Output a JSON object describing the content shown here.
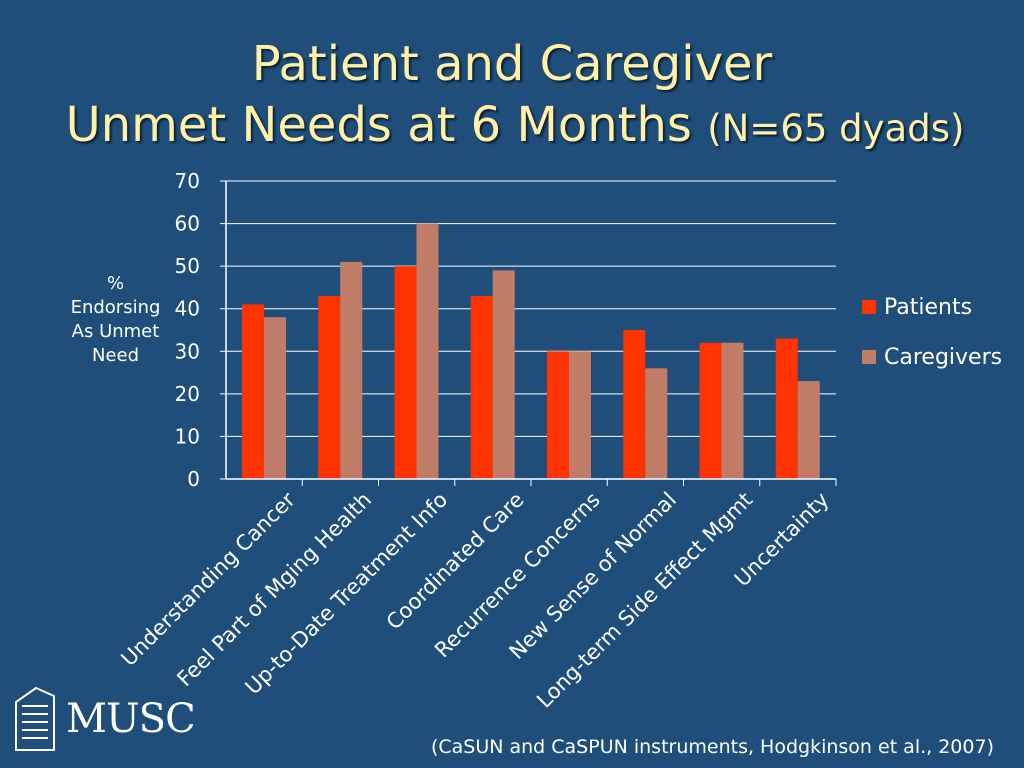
{
  "slide": {
    "title_line1": "Patient and Caregiver",
    "title_line2": "Unmet Needs at 6 Months",
    "title_sub": "(N=65 dyads)",
    "citation": "(CaSUN and CaSPUN instruments, Hodgkinson et al., 2007)",
    "logo_text": "MUSC"
  },
  "colors": {
    "background": "#1f4e7a",
    "title": "#fff2a8",
    "patients": "#ff3300",
    "caregivers": "#c07c66",
    "axis": "#ffffff",
    "grid": "#ffffff"
  },
  "chart_data": {
    "type": "bar",
    "ylabel": "%\nEndorsing\nAs Unmet\nNeed",
    "ylim": [
      0,
      70
    ],
    "yticks": [
      0,
      10,
      20,
      30,
      40,
      50,
      60,
      70
    ],
    "grid": true,
    "legend_position": "right",
    "categories": [
      "Understanding Cancer",
      "Feel Part of Mging Health",
      "Up-to-Date Treatment Info",
      "Coordinated Care",
      "Recurrence Concerns",
      "New Sense of Normal",
      "Long-term Side Effect Mgmt",
      "Uncertainty"
    ],
    "series": [
      {
        "name": "Patients",
        "values": [
          41,
          43,
          50,
          43,
          30,
          35,
          32,
          33
        ]
      },
      {
        "name": "Caregivers",
        "values": [
          38,
          51,
          60,
          49,
          30,
          26,
          32,
          23
        ]
      }
    ]
  }
}
